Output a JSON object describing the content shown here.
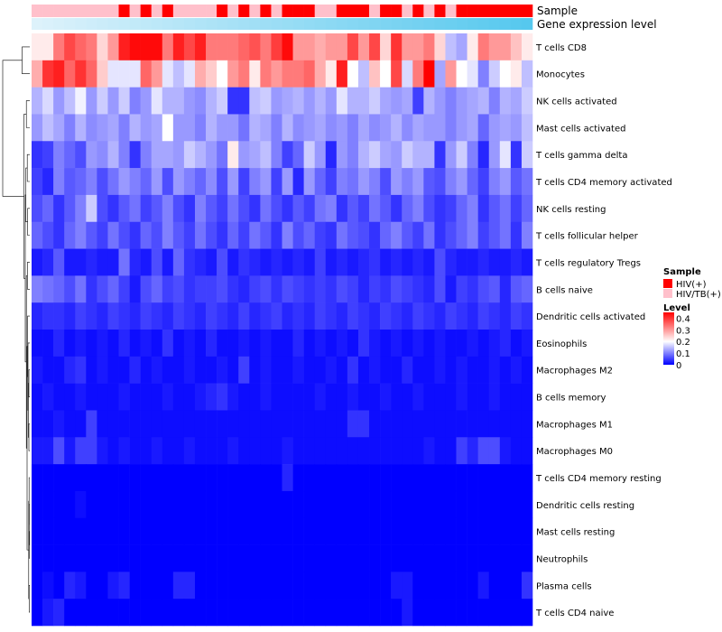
{
  "chart_data": {
    "type": "heatmap",
    "rows": [
      "T cells CD8",
      "Monocytes",
      "NK cells activated",
      "Mast cells activated",
      "T cells gamma delta",
      "T cells CD4 memory activated",
      "NK cells resting",
      "T cells follicular helper",
      "T cells regulatory  Tregs",
      "B cells naive",
      "Dendritic cells activated",
      "Eosinophils",
      "Macrophages M2",
      "B cells memory",
      "Macrophages M1",
      "Macrophages M0",
      "T cells CD4 memory resting",
      "Dendritic cells resting",
      "Mast cells resting",
      "Neutrophils",
      "Plasma cells",
      "T cells CD4 naive"
    ],
    "n_columns": 46,
    "annotations": [
      {
        "name": "Sample",
        "values": [
          "HIV/TB(+)",
          "HIV/TB(+)",
          "HIV/TB(+)",
          "HIV/TB(+)",
          "HIV/TB(+)",
          "HIV/TB(+)",
          "HIV/TB(+)",
          "HIV/TB(+)",
          "HIV(+)",
          "HIV/TB(+)",
          "HIV(+)",
          "HIV/TB(+)",
          "HIV(+)",
          "HIV/TB(+)",
          "HIV/TB(+)",
          "HIV/TB(+)",
          "HIV/TB(+)",
          "HIV(+)",
          "HIV/TB(+)",
          "HIV(+)",
          "HIV/TB(+)",
          "HIV(+)",
          "HIV/TB(+)",
          "HIV(+)",
          "HIV(+)",
          "HIV(+)",
          "HIV/TB(+)",
          "HIV/TB(+)",
          "HIV(+)",
          "HIV(+)",
          "HIV(+)",
          "HIV/TB(+)",
          "HIV(+)",
          "HIV(+)",
          "HIV/TB(+)",
          "HIV(+)",
          "HIV/TB(+)",
          "HIV(+)",
          "HIV/TB(+)",
          "HIV(+)",
          "HIV(+)",
          "HIV(+)",
          "HIV(+)",
          "HIV(+)",
          "HIV(+)",
          "HIV(+)"
        ]
      },
      {
        "name": "Gene expression level",
        "values": []
      }
    ],
    "values": [
      [
        0.22,
        0.22,
        0.33,
        0.38,
        0.35,
        0.33,
        0.24,
        0.3,
        0.42,
        0.44,
        0.44,
        0.44,
        0.33,
        0.42,
        0.38,
        0.42,
        0.33,
        0.33,
        0.33,
        0.35,
        0.37,
        0.33,
        0.39,
        0.44,
        0.3,
        0.3,
        0.28,
        0.3,
        0.3,
        0.38,
        0.3,
        0.38,
        0.24,
        0.4,
        0.3,
        0.3,
        0.33,
        0.24,
        0.15,
        0.13,
        0.22,
        0.33,
        0.3,
        0.3,
        0.26,
        0.22
      ],
      [
        0.28,
        0.4,
        0.42,
        0.35,
        0.4,
        0.35,
        0.25,
        0.18,
        0.18,
        0.18,
        0.35,
        0.3,
        0.18,
        0.15,
        0.18,
        0.28,
        0.25,
        0.2,
        0.3,
        0.33,
        0.22,
        0.33,
        0.3,
        0.33,
        0.33,
        0.35,
        0.28,
        0.22,
        0.42,
        0.2,
        0.15,
        0.26,
        0.2,
        0.38,
        0.17,
        0.33,
        0.45,
        0.13,
        0.3,
        0.2,
        0.18,
        0.1,
        0.16,
        0.2,
        0.22,
        0.15
      ],
      [
        0.14,
        0.17,
        0.12,
        0.15,
        0.19,
        0.12,
        0.16,
        0.12,
        0.16,
        0.1,
        0.12,
        0.18,
        0.14,
        0.14,
        0.12,
        0.11,
        0.14,
        0.16,
        0.04,
        0.04,
        0.15,
        0.16,
        0.12,
        0.13,
        0.14,
        0.12,
        0.14,
        0.12,
        0.18,
        0.14,
        0.14,
        0.16,
        0.13,
        0.12,
        0.13,
        0.05,
        0.14,
        0.12,
        0.1,
        0.12,
        0.13,
        0.14,
        0.1,
        0.14,
        0.13,
        0.16
      ],
      [
        0.12,
        0.15,
        0.13,
        0.1,
        0.14,
        0.11,
        0.12,
        0.13,
        0.1,
        0.14,
        0.12,
        0.13,
        0.2,
        0.12,
        0.12,
        0.1,
        0.14,
        0.12,
        0.12,
        0.09,
        0.14,
        0.13,
        0.1,
        0.14,
        0.11,
        0.12,
        0.13,
        0.11,
        0.12,
        0.1,
        0.13,
        0.11,
        0.12,
        0.14,
        0.11,
        0.13,
        0.12,
        0.12,
        0.1,
        0.12,
        0.13,
        0.08,
        0.12,
        0.13,
        0.12,
        0.15
      ],
      [
        0.04,
        0.05,
        0.1,
        0.08,
        0.06,
        0.12,
        0.11,
        0.14,
        0.1,
        0.04,
        0.1,
        0.13,
        0.13,
        0.12,
        0.16,
        0.14,
        0.12,
        0.09,
        0.22,
        0.12,
        0.13,
        0.15,
        0.1,
        0.05,
        0.08,
        0.16,
        0.12,
        0.03,
        0.12,
        0.1,
        0.14,
        0.16,
        0.13,
        0.12,
        0.16,
        0.14,
        0.14,
        0.04,
        0.12,
        0.16,
        0.1,
        0.03,
        0.12,
        0.18,
        0.04,
        0.16
      ],
      [
        0.05,
        0.03,
        0.1,
        0.07,
        0.08,
        0.1,
        0.06,
        0.09,
        0.12,
        0.1,
        0.08,
        0.12,
        0.06,
        0.12,
        0.1,
        0.08,
        0.11,
        0.06,
        0.12,
        0.05,
        0.1,
        0.12,
        0.05,
        0.12,
        0.03,
        0.12,
        0.08,
        0.05,
        0.1,
        0.09,
        0.12,
        0.1,
        0.06,
        0.12,
        0.1,
        0.12,
        0.07,
        0.06,
        0.1,
        0.12,
        0.08,
        0.05,
        0.1,
        0.12,
        0.07,
        0.09
      ],
      [
        0.06,
        0.08,
        0.04,
        0.07,
        0.1,
        0.16,
        0.06,
        0.04,
        0.07,
        0.09,
        0.05,
        0.07,
        0.1,
        0.06,
        0.04,
        0.1,
        0.07,
        0.05,
        0.09,
        0.06,
        0.04,
        0.09,
        0.06,
        0.04,
        0.07,
        0.05,
        0.09,
        0.1,
        0.04,
        0.07,
        0.05,
        0.09,
        0.07,
        0.04,
        0.08,
        0.1,
        0.06,
        0.04,
        0.05,
        0.08,
        0.1,
        0.04,
        0.07,
        0.09,
        0.05,
        0.08
      ],
      [
        0.08,
        0.06,
        0.04,
        0.08,
        0.1,
        0.07,
        0.05,
        0.09,
        0.06,
        0.04,
        0.08,
        0.06,
        0.1,
        0.07,
        0.05,
        0.09,
        0.06,
        0.04,
        0.08,
        0.05,
        0.09,
        0.07,
        0.04,
        0.1,
        0.06,
        0.08,
        0.05,
        0.04,
        0.09,
        0.07,
        0.06,
        0.04,
        0.08,
        0.1,
        0.07,
        0.05,
        0.09,
        0.04,
        0.06,
        0.08,
        0.1,
        0.05,
        0.07,
        0.09,
        0.04,
        0.1
      ],
      [
        0.02,
        0.03,
        0.07,
        0.02,
        0.02,
        0.03,
        0.02,
        0.02,
        0.09,
        0.03,
        0.02,
        0.06,
        0.02,
        0.08,
        0.04,
        0.03,
        0.02,
        0.06,
        0.02,
        0.04,
        0.03,
        0.02,
        0.03,
        0.02,
        0.03,
        0.02,
        0.05,
        0.02,
        0.03,
        0.02,
        0.03,
        0.04,
        0.02,
        0.03,
        0.02,
        0.03,
        0.02,
        0.06,
        0.03,
        0.02,
        0.02,
        0.03,
        0.02,
        0.02,
        0.03,
        0.02
      ],
      [
        0.1,
        0.09,
        0.08,
        0.06,
        0.09,
        0.04,
        0.06,
        0.08,
        0.05,
        0.02,
        0.06,
        0.08,
        0.05,
        0.06,
        0.04,
        0.05,
        0.05,
        0.06,
        0.04,
        0.03,
        0.05,
        0.06,
        0.04,
        0.06,
        0.05,
        0.04,
        0.05,
        0.04,
        0.06,
        0.05,
        0.03,
        0.05,
        0.04,
        0.06,
        0.05,
        0.04,
        0.03,
        0.06,
        0.02,
        0.05,
        0.04,
        0.06,
        0.07,
        0.03,
        0.07,
        0.08
      ],
      [
        0.03,
        0.04,
        0.04,
        0.03,
        0.05,
        0.04,
        0.03,
        0.05,
        0.04,
        0.03,
        0.05,
        0.04,
        0.03,
        0.05,
        0.04,
        0.03,
        0.05,
        0.04,
        0.03,
        0.05,
        0.03,
        0.04,
        0.05,
        0.03,
        0.04,
        0.03,
        0.05,
        0.04,
        0.03,
        0.05,
        0.04,
        0.03,
        0.05,
        0.04,
        0.03,
        0.05,
        0.04,
        0.03,
        0.05,
        0.04,
        0.03,
        0.05,
        0.04,
        0.03,
        0.05,
        0.04
      ],
      [
        0.01,
        0.01,
        0.03,
        0.01,
        0.02,
        0.01,
        0.02,
        0.01,
        0.03,
        0.01,
        0.02,
        0.01,
        0.04,
        0.01,
        0.02,
        0.01,
        0.03,
        0.01,
        0.01,
        0.02,
        0.01,
        0.02,
        0.01,
        0.01,
        0.03,
        0.01,
        0.02,
        0.01,
        0.02,
        0.01,
        0.04,
        0.02,
        0.01,
        0.02,
        0.01,
        0.02,
        0.01,
        0.02,
        0.01,
        0.01,
        0.02,
        0.01,
        0.02,
        0.03,
        0.01,
        0.02
      ],
      [
        0.02,
        0.01,
        0.01,
        0.03,
        0.04,
        0.01,
        0.02,
        0.01,
        0.01,
        0.03,
        0.01,
        0.02,
        0.01,
        0.01,
        0.02,
        0.01,
        0.01,
        0.02,
        0.01,
        0.05,
        0.01,
        0.02,
        0.01,
        0.01,
        0.02,
        0.01,
        0.01,
        0.02,
        0.01,
        0.04,
        0.01,
        0.02,
        0.01,
        0.01,
        0.03,
        0.01,
        0.01,
        0.02,
        0.01,
        0.02,
        0.01,
        0.01,
        0.02,
        0.01,
        0.02,
        0.01
      ],
      [
        0.01,
        0.02,
        0.01,
        0.01,
        0.02,
        0.01,
        0.01,
        0.01,
        0.02,
        0.01,
        0.01,
        0.01,
        0.02,
        0.01,
        0.01,
        0.02,
        0.03,
        0.04,
        0.02,
        0.01,
        0.01,
        0.02,
        0.01,
        0.01,
        0.01,
        0.01,
        0.02,
        0.01,
        0.01,
        0.02,
        0.01,
        0.01,
        0.02,
        0.01,
        0.01,
        0.02,
        0.01,
        0.01,
        0.01,
        0.02,
        0.01,
        0.01,
        0.02,
        0.01,
        0.01,
        0.01
      ],
      [
        0.01,
        0.01,
        0.02,
        0.01,
        0.01,
        0.05,
        0.01,
        0.01,
        0.01,
        0.01,
        0.01,
        0.01,
        0.01,
        0.01,
        0.01,
        0.01,
        0.01,
        0.01,
        0.01,
        0.01,
        0.01,
        0.01,
        0.01,
        0.01,
        0.01,
        0.01,
        0.01,
        0.01,
        0.01,
        0.04,
        0.04,
        0.01,
        0.01,
        0.01,
        0.01,
        0.01,
        0.01,
        0.01,
        0.01,
        0.01,
        0.01,
        0.01,
        0.01,
        0.01,
        0.01,
        0.01
      ],
      [
        0.02,
        0.02,
        0.06,
        0.02,
        0.05,
        0.05,
        0.02,
        0.01,
        0.02,
        0.01,
        0.01,
        0.02,
        0.01,
        0.01,
        0.02,
        0.01,
        0.01,
        0.01,
        0.02,
        0.01,
        0.01,
        0.01,
        0.01,
        0.02,
        0.01,
        0.01,
        0.01,
        0.01,
        0.01,
        0.01,
        0.01,
        0.01,
        0.01,
        0.01,
        0.01,
        0.01,
        0.02,
        0.01,
        0.01,
        0.05,
        0.03,
        0.06,
        0.06,
        0.02,
        0.01,
        0.01
      ],
      [
        0.0,
        0.0,
        0.0,
        0.0,
        0.0,
        0.0,
        0.0,
        0.0,
        0.0,
        0.0,
        0.0,
        0.0,
        0.0,
        0.0,
        0.0,
        0.0,
        0.0,
        0.0,
        0.0,
        0.0,
        0.0,
        0.0,
        0.0,
        0.03,
        0.0,
        0.0,
        0.0,
        0.0,
        0.0,
        0.0,
        0.0,
        0.0,
        0.0,
        0.0,
        0.0,
        0.0,
        0.0,
        0.0,
        0.0,
        0.0,
        0.0,
        0.0,
        0.0,
        0.0,
        0.0,
        0.0
      ],
      [
        0.0,
        0.0,
        0.0,
        0.0,
        0.01,
        0.0,
        0.0,
        0.0,
        0.0,
        0.0,
        0.0,
        0.0,
        0.0,
        0.0,
        0.0,
        0.0,
        0.0,
        0.0,
        0.0,
        0.0,
        0.0,
        0.0,
        0.0,
        0.0,
        0.0,
        0.0,
        0.0,
        0.0,
        0.0,
        0.0,
        0.0,
        0.0,
        0.0,
        0.0,
        0.0,
        0.0,
        0.0,
        0.0,
        0.0,
        0.0,
        0.0,
        0.0,
        0.0,
        0.0,
        0.0,
        0.0
      ],
      [
        0.0,
        0.0,
        0.0,
        0.0,
        0.0,
        0.0,
        0.0,
        0.0,
        0.0,
        0.0,
        0.0,
        0.0,
        0.0,
        0.0,
        0.0,
        0.0,
        0.0,
        0.0,
        0.0,
        0.0,
        0.0,
        0.0,
        0.0,
        0.0,
        0.0,
        0.0,
        0.0,
        0.0,
        0.0,
        0.0,
        0.0,
        0.0,
        0.0,
        0.0,
        0.0,
        0.0,
        0.0,
        0.0,
        0.0,
        0.0,
        0.0,
        0.0,
        0.0,
        0.0,
        0.0,
        0.0
      ],
      [
        0.0,
        0.0,
        0.0,
        0.0,
        0.0,
        0.0,
        0.0,
        0.0,
        0.0,
        0.0,
        0.0,
        0.0,
        0.0,
        0.0,
        0.0,
        0.0,
        0.0,
        0.0,
        0.0,
        0.0,
        0.0,
        0.0,
        0.0,
        0.0,
        0.0,
        0.0,
        0.0,
        0.0,
        0.0,
        0.0,
        0.0,
        0.0,
        0.0,
        0.0,
        0.0,
        0.0,
        0.0,
        0.0,
        0.0,
        0.0,
        0.0,
        0.0,
        0.0,
        0.0,
        0.0,
        0.0
      ],
      [
        0.0,
        0.01,
        0.0,
        0.03,
        0.02,
        0.0,
        0.0,
        0.02,
        0.03,
        0.0,
        0.0,
        0.0,
        0.0,
        0.03,
        0.03,
        0.0,
        0.0,
        0.0,
        0.0,
        0.0,
        0.0,
        0.0,
        0.0,
        0.0,
        0.0,
        0.0,
        0.0,
        0.0,
        0.0,
        0.0,
        0.0,
        0.0,
        0.0,
        0.02,
        0.02,
        0.0,
        0.0,
        0.0,
        0.0,
        0.0,
        0.0,
        0.02,
        0.0,
        0.0,
        0.0,
        0.04
      ],
      [
        0.0,
        0.02,
        0.03,
        0.0,
        0.0,
        0.0,
        0.0,
        0.0,
        0.0,
        0.0,
        0.0,
        0.0,
        0.0,
        0.0,
        0.0,
        0.0,
        0.0,
        0.0,
        0.0,
        0.0,
        0.0,
        0.0,
        0.0,
        0.0,
        0.0,
        0.0,
        0.0,
        0.0,
        0.0,
        0.0,
        0.0,
        0.0,
        0.0,
        0.0,
        0.02,
        0.0,
        0.0,
        0.0,
        0.0,
        0.0,
        0.0,
        0.0,
        0.0,
        0.0,
        0.0,
        0.0
      ]
    ],
    "color_scale": {
      "min": 0,
      "max": 0.45,
      "low": "#0000ff",
      "mid": "#ffffff",
      "high": "#ff0000",
      "mid_value": 0.2
    },
    "annotation_colors": {
      "HIV(+)": "#ff0000",
      "HIV/TB(+)": "#ffc0cb",
      "Gene expression level": [
        "#ddf2fb",
        "#56c8ee"
      ]
    },
    "legend": {
      "sample_title": "Sample",
      "sample_items": [
        "HIV(+)",
        "HIV/TB(+)"
      ],
      "level_title": "Level",
      "level_ticks": [
        "0.4",
        "0.3",
        "0.2",
        "0.1",
        "0"
      ],
      "level_tick_values": [
        0.4,
        0.3,
        0.2,
        0.1,
        0
      ]
    }
  }
}
